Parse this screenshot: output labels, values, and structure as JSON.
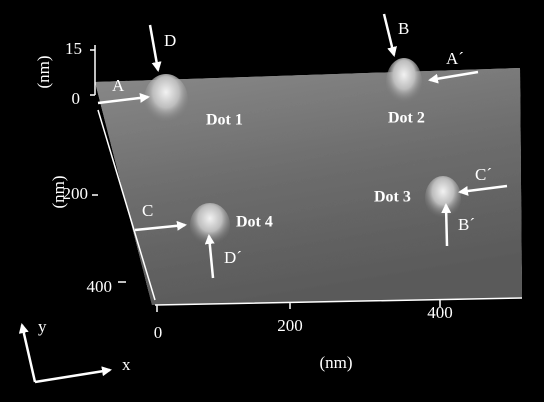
{
  "axes": {
    "z": {
      "label": "(nm)",
      "ticks": [
        "15",
        "0"
      ]
    },
    "y": {
      "label": "(nm)",
      "ticks": [
        "200",
        "400"
      ]
    },
    "x": {
      "label": "(nm)",
      "ticks": [
        "0",
        "200",
        "400"
      ]
    }
  },
  "dots": [
    "Dot 1",
    "Dot 2",
    "Dot 3",
    "Dot 4"
  ],
  "arrows": [
    "A",
    "A´",
    "B",
    "B´",
    "C",
    "C´",
    "D",
    "D´"
  ],
  "compass": [
    "y",
    "x"
  ]
}
